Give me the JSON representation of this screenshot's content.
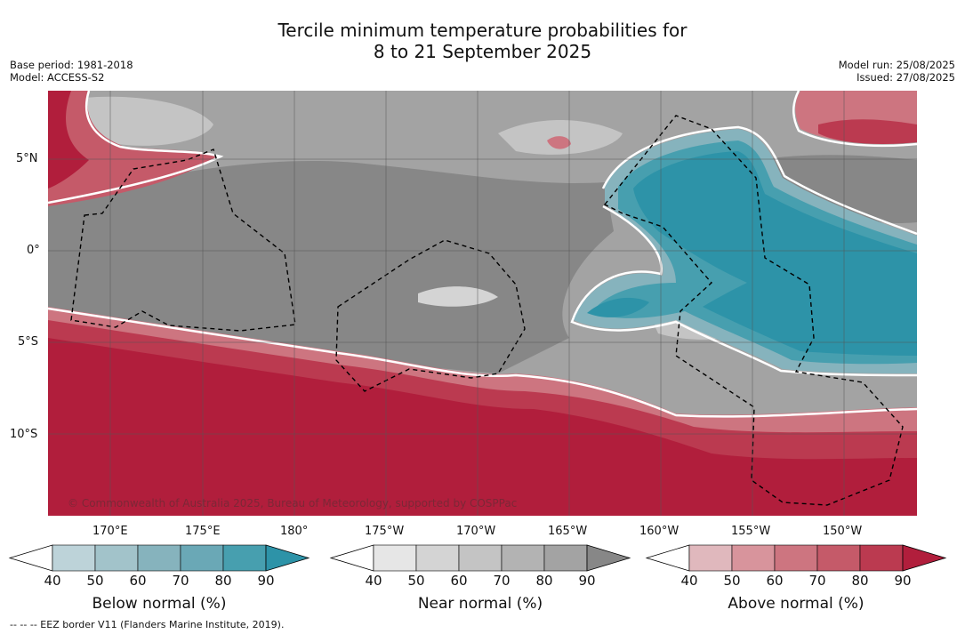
{
  "title_line1": "Tercile minimum temperature probabilities for",
  "title_line2": "8 to 21 September 2025",
  "base_period": "Base period: 1981-2018",
  "model": "Model: ACCESS-S2",
  "model_run": "Model run: 25/08/2025",
  "issued": "Issued: 27/08/2025",
  "copyright": "© Commonwealth of Australia 2025, Bureau of Meteorology, supported by COSPPac",
  "footnote": "-- -- -- EEZ border V11 (Flanders Marine Institute, 2019).",
  "map": {
    "lon_ticks": [
      "170°E",
      "175°E",
      "180°",
      "175°W",
      "170°W",
      "165°W",
      "160°W",
      "155°W",
      "150°W"
    ],
    "lat_ticks": [
      "5°N",
      "0°",
      "5°S",
      "10°S"
    ]
  },
  "colors": {
    "below": [
      "#bdd3d9",
      "#a2c3ca",
      "#86b3bd",
      "#6aa8b6",
      "#479faf",
      "#2d93a8"
    ],
    "near": [
      "#e6e6e6",
      "#d4d4d4",
      "#c4c4c4",
      "#b3b3b3",
      "#a3a3a3",
      "#878787"
    ],
    "above": [
      "#e0b8bd",
      "#d8949c",
      "#cd7580",
      "#c55a69",
      "#bb3a50",
      "#b11e3c"
    ]
  },
  "colorbars": [
    {
      "name": "below",
      "label": "Below normal (%)",
      "ticks": [
        "40",
        "50",
        "60",
        "70",
        "80",
        "90"
      ]
    },
    {
      "name": "near",
      "label": "Near normal (%)",
      "ticks": [
        "40",
        "50",
        "60",
        "70",
        "80",
        "90"
      ]
    },
    {
      "name": "above",
      "label": "Above normal (%)",
      "ticks": [
        "40",
        "50",
        "60",
        "70",
        "80",
        "90"
      ]
    }
  ]
}
